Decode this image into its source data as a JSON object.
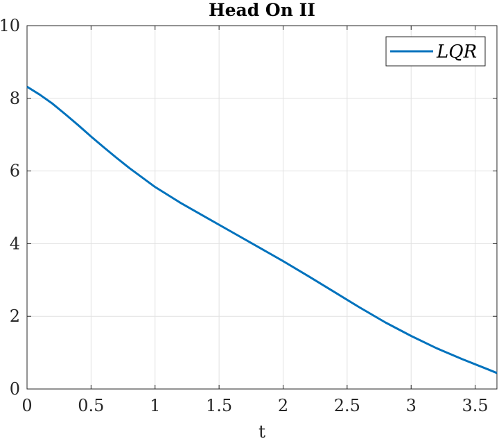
{
  "chart_data": {
    "type": "line",
    "title": "Head On II",
    "xlabel": "t",
    "ylabel": "",
    "xlim": [
      0,
      3.67
    ],
    "ylim": [
      0,
      10
    ],
    "xticks": [
      0,
      0.5,
      1,
      1.5,
      2,
      2.5,
      3,
      3.5
    ],
    "xtick_labels": [
      "0",
      "0.5",
      "1",
      "1.5",
      "2",
      "2.5",
      "3",
      "3.5"
    ],
    "yticks": [
      0,
      2,
      4,
      6,
      8,
      10
    ],
    "ytick_labels": [
      "0",
      "2",
      "4",
      "6",
      "8",
      "10"
    ],
    "grid": true,
    "legend_position": "top-right",
    "series": [
      {
        "name": "LQR",
        "color": "#0072BD",
        "x": [
          0,
          0.1,
          0.2,
          0.3,
          0.4,
          0.5,
          0.6,
          0.7,
          0.8,
          0.9,
          1.0,
          1.2,
          1.4,
          1.6,
          1.8,
          2.0,
          2.2,
          2.4,
          2.6,
          2.8,
          3.0,
          3.2,
          3.4,
          3.6,
          3.67
        ],
        "values": [
          8.32,
          8.1,
          7.85,
          7.56,
          7.26,
          6.95,
          6.65,
          6.36,
          6.08,
          5.82,
          5.56,
          5.12,
          4.72,
          4.32,
          3.92,
          3.52,
          3.1,
          2.67,
          2.24,
          1.83,
          1.46,
          1.12,
          0.82,
          0.54,
          0.44
        ]
      }
    ]
  }
}
